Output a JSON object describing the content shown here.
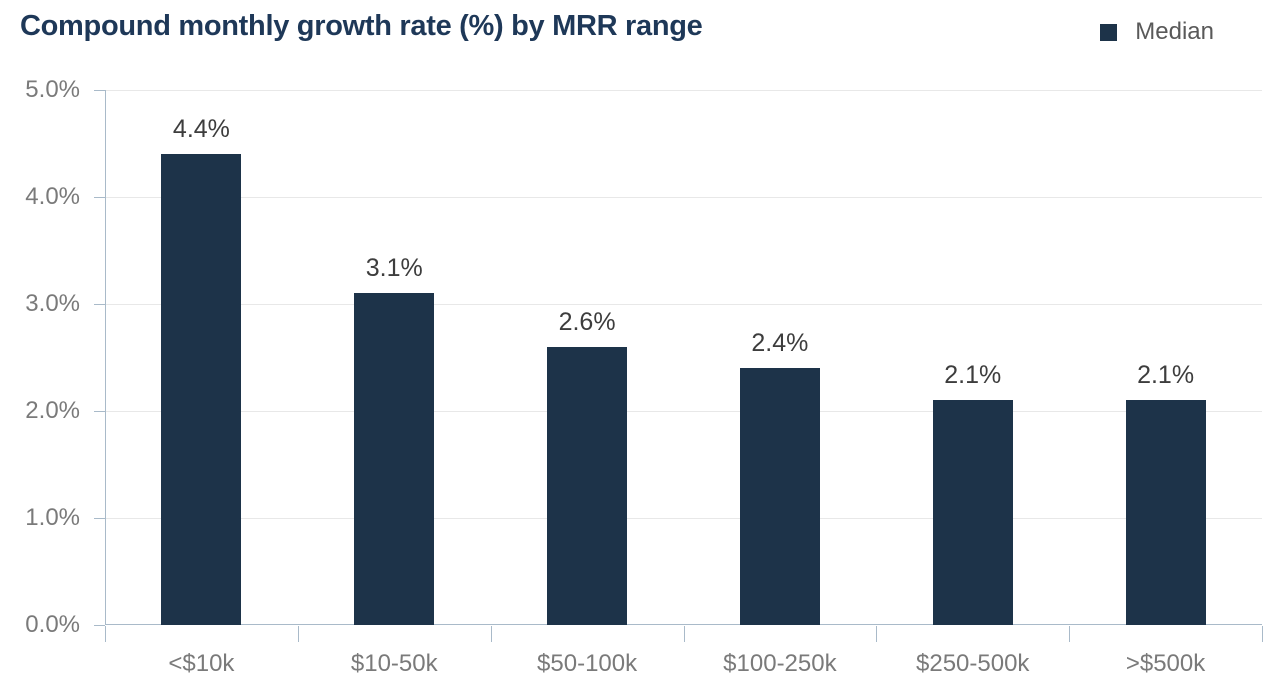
{
  "header": {
    "title": "Compound monthly growth rate (%) by MRR range",
    "legend": {
      "label": "Median",
      "marker_color": "#1d3349",
      "position": "top-right"
    }
  },
  "colors": {
    "bar": "#1d3349",
    "title_text": "#1e3858",
    "axis_line": "#a9bac9",
    "gridline": "#e8e8e8",
    "axis_tick_label": "#7a7a7a",
    "value_label": "#3d3d3d",
    "legend_text": "#595959",
    "background": "#ffffff"
  },
  "chart_data": {
    "type": "bar",
    "title": "Compound monthly growth rate (%) by MRR range",
    "series": [
      {
        "name": "Median",
        "values": [
          4.4,
          3.1,
          2.6,
          2.4,
          2.1,
          2.1
        ]
      }
    ],
    "categories": [
      "<$10k",
      "$10-50k",
      "$50-100k",
      "$100-250k",
      "$250-500k",
      ">$500k"
    ],
    "value_labels": [
      "4.4%",
      "3.1%",
      "2.6%",
      "2.4%",
      "2.1%",
      "2.1%"
    ],
    "xlabel": "",
    "ylabel": "",
    "ylim": [
      0,
      5
    ],
    "ytick_step": 1,
    "ytick_labels": [
      "0.0%",
      "1.0%",
      "2.0%",
      "3.0%",
      "4.0%",
      "5.0%"
    ],
    "grid": true,
    "legend_position": "top-right"
  }
}
